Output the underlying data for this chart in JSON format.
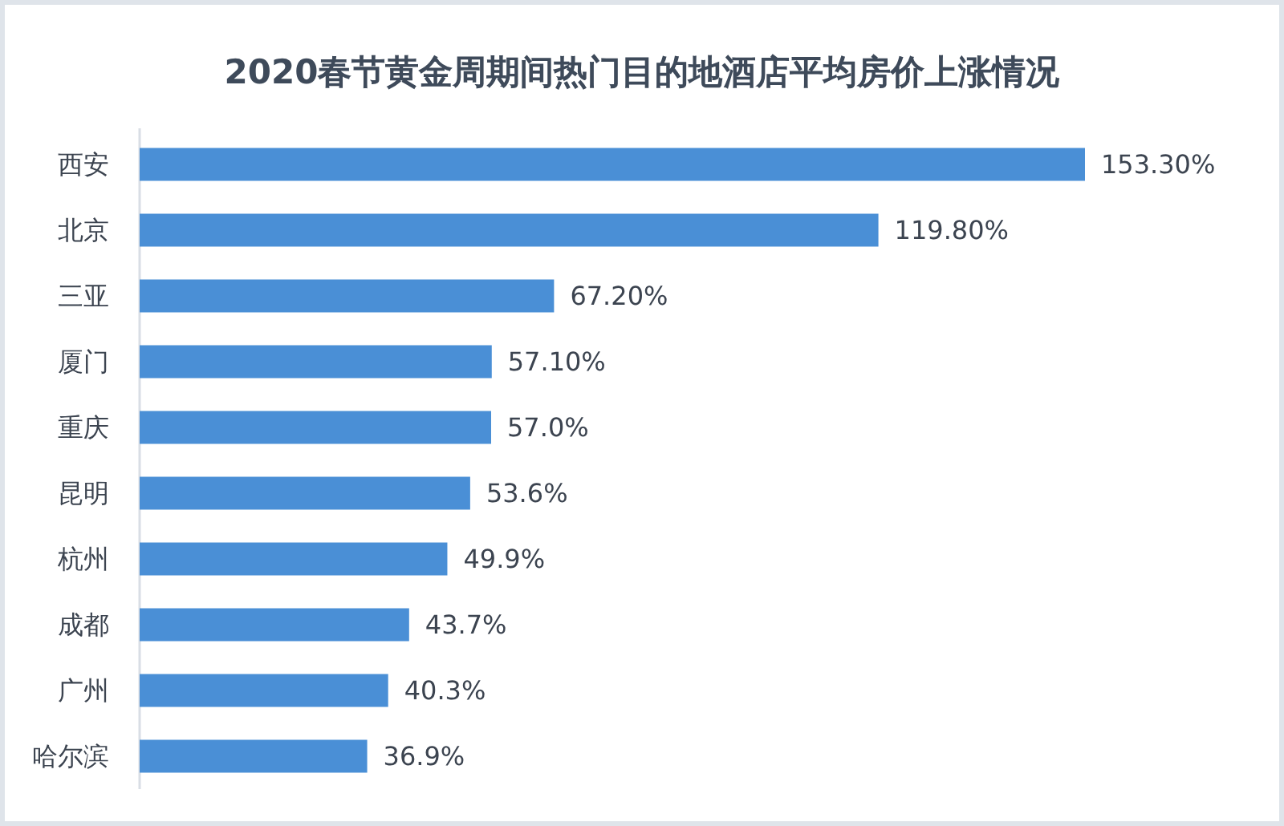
{
  "chart_data": {
    "type": "bar",
    "orientation": "horizontal",
    "title": "2020春节黄金周期间热门目的地酒店平均房价上涨情况",
    "categories": [
      "西安",
      "北京",
      "三亚",
      "厦门",
      "重庆",
      "昆明",
      "杭州",
      "成都",
      "广州",
      "哈尔滨"
    ],
    "values": [
      153.3,
      119.8,
      67.2,
      57.1,
      57.0,
      53.6,
      49.9,
      43.7,
      40.3,
      36.9
    ],
    "value_labels": [
      "153.30%",
      "119.80%",
      "67.20%",
      "57.10%",
      "57.0%",
      "53.6%",
      "49.9%",
      "43.7%",
      "40.3%",
      "36.9%"
    ],
    "color": "#4a8fd6"
  }
}
